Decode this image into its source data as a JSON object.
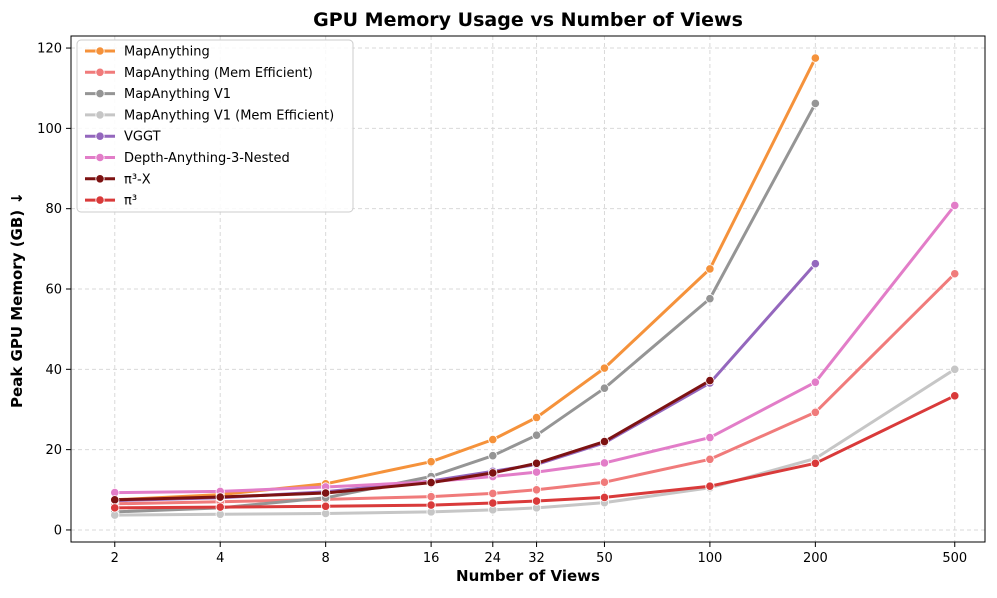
{
  "chart_data": {
    "type": "line",
    "title": "GPU Memory Usage vs Number of Views",
    "xlabel": "Number of Views",
    "ylabel": "Peak GPU Memory (GB) ↓",
    "x_scale": "log",
    "x_ticks": [
      2,
      4,
      8,
      16,
      24,
      32,
      50,
      100,
      200,
      500
    ],
    "y_ticks": [
      0,
      20,
      40,
      60,
      80,
      100,
      120
    ],
    "xlim": [
      1.5,
      610
    ],
    "ylim": [
      -3,
      123
    ],
    "grid": true,
    "legend_position": "top-left",
    "series": [
      {
        "name": "MapAnything",
        "color": "#f5923b",
        "x": [
          2,
          4,
          8,
          16,
          24,
          32,
          50,
          100,
          200
        ],
        "y": [
          7.5,
          8.8,
          11.5,
          17.0,
          22.5,
          28.0,
          40.3,
          65.0,
          117.5
        ]
      },
      {
        "name": "MapAnything (Mem Efficient)",
        "color": "#f07b7b",
        "x": [
          2,
          4,
          8,
          16,
          24,
          32,
          50,
          100,
          200,
          500
        ],
        "y": [
          6.5,
          7.0,
          7.6,
          8.3,
          9.1,
          10.0,
          11.9,
          17.6,
          29.3,
          63.8
        ]
      },
      {
        "name": "MapAnything V1",
        "color": "#959595",
        "x": [
          2,
          4,
          8,
          16,
          24,
          32,
          50,
          100,
          200
        ],
        "y": [
          4.5,
          5.5,
          8.0,
          13.3,
          18.5,
          23.6,
          35.3,
          57.6,
          106.2
        ]
      },
      {
        "name": "MapAnything V1 (Mem Efficient)",
        "color": "#c6c6c6",
        "x": [
          2,
          4,
          8,
          16,
          24,
          32,
          50,
          100,
          200,
          500
        ],
        "y": [
          3.7,
          3.9,
          4.1,
          4.5,
          5.0,
          5.5,
          6.8,
          10.5,
          17.8,
          40.0
        ]
      },
      {
        "name": "VGGT",
        "color": "#9467bd",
        "x": [
          2,
          4,
          8,
          16,
          24,
          32,
          50,
          100,
          200
        ],
        "y": [
          7.3,
          8.0,
          9.5,
          12.2,
          14.6,
          16.3,
          21.7,
          36.6,
          66.3
        ]
      },
      {
        "name": "Depth-Anything-3-Nested",
        "color": "#e27dc8",
        "x": [
          2,
          4,
          8,
          16,
          24,
          32,
          50,
          100,
          200,
          500
        ],
        "y": [
          9.3,
          9.6,
          10.7,
          12.0,
          13.3,
          14.4,
          16.7,
          23.0,
          36.8,
          80.8
        ]
      },
      {
        "name": "π³-X",
        "color": "#7d1212",
        "x": [
          2,
          4,
          8,
          16,
          24,
          32,
          50,
          100
        ],
        "y": [
          7.5,
          8.2,
          9.2,
          11.8,
          14.2,
          16.6,
          22.0,
          37.2
        ]
      },
      {
        "name": "π³",
        "color": "#d93a3a",
        "x": [
          2,
          4,
          8,
          16,
          24,
          32,
          50,
          100,
          200,
          500
        ],
        "y": [
          5.5,
          5.7,
          5.9,
          6.2,
          6.7,
          7.2,
          8.1,
          10.9,
          16.6,
          33.4
        ]
      }
    ]
  }
}
